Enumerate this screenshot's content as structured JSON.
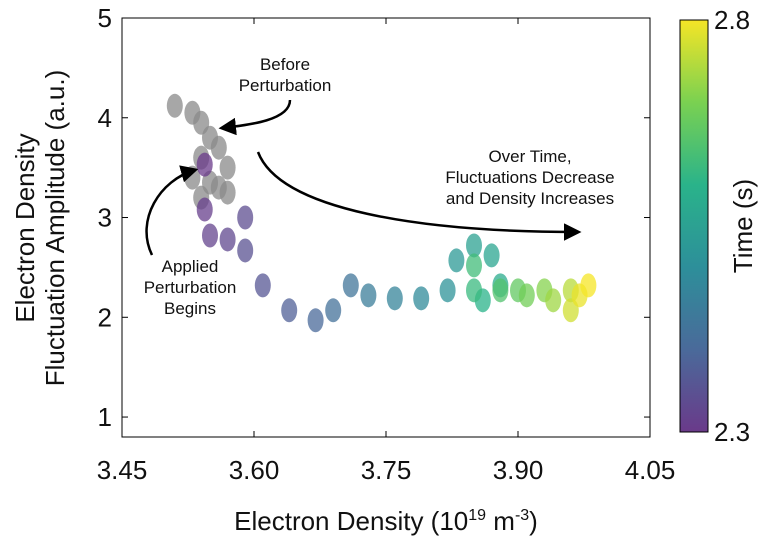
{
  "chart_data": {
    "type": "scatter",
    "x_label_parts": [
      "Electron Density (10",
      "19",
      " m",
      "-3",
      ")"
    ],
    "y_label_lines": [
      "Electron Density",
      "Fluctuation Amplitude (a.u.)"
    ],
    "x": [
      3.51,
      3.53,
      3.54,
      3.55,
      3.56,
      3.54,
      3.57,
      3.53,
      3.56,
      3.54,
      3.57,
      3.55,
      3.544,
      3.544,
      3.55,
      3.57,
      3.59,
      3.59,
      3.61,
      3.64,
      3.67,
      3.69,
      3.71,
      3.73,
      3.76,
      3.79,
      3.82,
      3.83,
      3.85,
      3.87,
      3.88,
      3.86,
      3.85,
      3.85,
      3.88,
      3.9,
      3.91,
      3.93,
      3.94,
      3.96,
      3.96,
      3.97,
      3.98
    ],
    "values": [
      4.12,
      4.05,
      3.95,
      3.8,
      3.7,
      3.6,
      3.5,
      3.4,
      3.3,
      3.2,
      3.25,
      3.35,
      3.53,
      3.08,
      2.82,
      2.78,
      3.0,
      2.67,
      2.32,
      2.07,
      1.97,
      2.07,
      2.32,
      2.22,
      2.19,
      2.19,
      2.27,
      2.57,
      2.72,
      2.62,
      2.32,
      2.17,
      2.27,
      2.52,
      2.27,
      2.27,
      2.22,
      2.27,
      2.17,
      2.27,
      2.07,
      2.22,
      2.32
    ],
    "c": [
      null,
      null,
      null,
      null,
      null,
      null,
      null,
      null,
      null,
      null,
      null,
      null,
      2.3,
      2.31,
      2.32,
      2.33,
      2.34,
      2.35,
      2.36,
      2.38,
      2.4,
      2.42,
      2.43,
      2.45,
      2.47,
      2.49,
      2.51,
      2.53,
      2.55,
      2.56,
      2.58,
      2.6,
      2.62,
      2.63,
      2.65,
      2.67,
      2.69,
      2.71,
      2.73,
      2.75,
      2.77,
      2.79,
      2.8
    ],
    "xlim": [
      3.45,
      4.05
    ],
    "ylim": [
      0.8,
      5
    ],
    "xticks": [
      3.45,
      {
        "value": 3.6,
        "label": "3.60"
      },
      3.75,
      {
        "value": 3.9,
        "label": "3.90"
      },
      4.05
    ],
    "yticks": [
      1,
      2,
      3,
      4,
      5
    ],
    "colorbar": {
      "label": "Time (s)",
      "lim": [
        2.3,
        2.8
      ],
      "ticks": [
        2.3,
        2.8
      ],
      "colormap": [
        "#6a3a8a",
        "#4a6a9a",
        "#2d8f9a",
        "#2ab38a",
        "#7ad151",
        "#f5e526"
      ],
      "empty_color": "#8a8a8a"
    },
    "annotations": [
      {
        "lines": [
          "Before",
          "Perturbation"
        ]
      },
      {
        "lines": [
          "Over Time,",
          "Fluctuations Decrease",
          "and Density Increases"
        ]
      },
      {
        "lines": [
          "Applied",
          "Perturbation",
          "Begins"
        ]
      }
    ]
  }
}
